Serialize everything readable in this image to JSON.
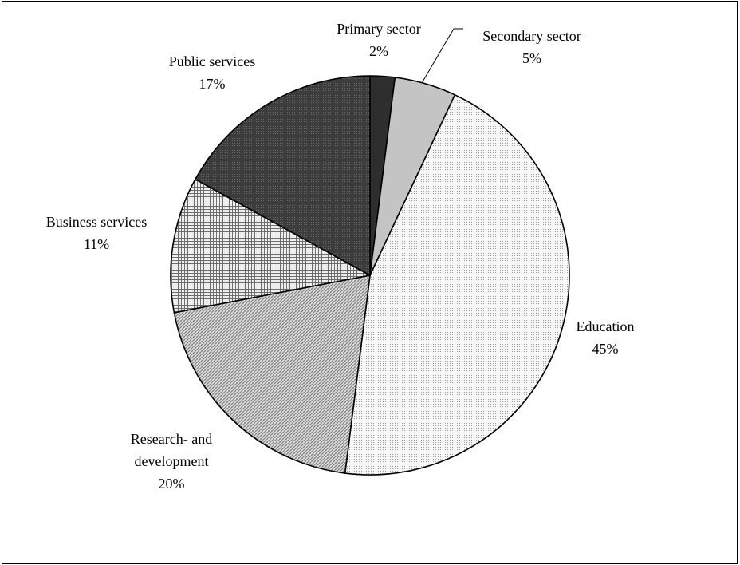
{
  "chart_data": {
    "type": "pie",
    "title": "",
    "slices": [
      {
        "name": "Primary sector",
        "value": 2,
        "value_label": "2%",
        "fill": "#2e2e2e",
        "pattern": "solid"
      },
      {
        "name": "Secondary sector",
        "value": 5,
        "value_label": "5%",
        "fill": "#c4c4c4",
        "pattern": "solid"
      },
      {
        "name": "Education",
        "value": 45,
        "value_label": "45%",
        "fill": "#f1f1f1",
        "pattern": "fine-dots"
      },
      {
        "name": "Research- and development",
        "value": 20,
        "value_label": "20%",
        "fill": "#d9d9d9",
        "pattern": "diagonal-hatch"
      },
      {
        "name": "Business services",
        "value": 11,
        "value_label": "11%",
        "fill": "#e4e4e4",
        "pattern": "grid"
      },
      {
        "name": "Public services",
        "value": 17,
        "value_label": "17%",
        "fill": "#474747",
        "pattern": "dark-hatch"
      }
    ],
    "start_angle": "12 o'clock",
    "direction": "clockwise",
    "legend": "none",
    "labels": "outside"
  }
}
